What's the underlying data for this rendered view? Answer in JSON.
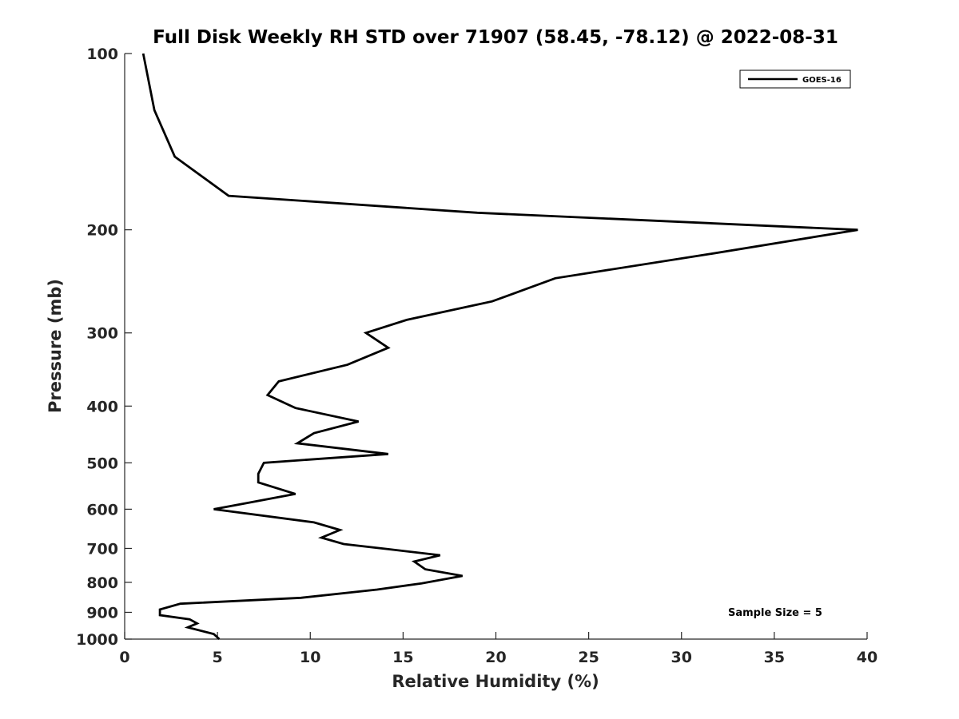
{
  "chart_data": {
    "type": "line",
    "title": "Full Disk Weekly RH STD over 71907 (58.45, -78.12) @ 2022-08-31",
    "xlabel": "Relative Humidity (%)",
    "ylabel": "Pressure (mb)",
    "xlim": [
      0,
      40
    ],
    "ylim": [
      100,
      1000
    ],
    "y_scale": "log",
    "y_reversed": true,
    "x_ticks": [
      0,
      5,
      10,
      15,
      20,
      25,
      30,
      35,
      40
    ],
    "y_ticks": [
      100,
      200,
      300,
      400,
      500,
      600,
      700,
      800,
      900,
      1000
    ],
    "grid": false,
    "legend_position": "top-right",
    "series": [
      {
        "name": "GOES-16",
        "color": "#000000",
        "points": [
          [
            1.0,
            100
          ],
          [
            1.6,
            125
          ],
          [
            2.7,
            150
          ],
          [
            5.6,
            175
          ],
          [
            19.0,
            187
          ],
          [
            39.5,
            200
          ],
          [
            31.5,
            220
          ],
          [
            23.2,
            242
          ],
          [
            19.8,
            265
          ],
          [
            15.2,
            285
          ],
          [
            13.0,
            300
          ],
          [
            14.2,
            318
          ],
          [
            12.0,
            340
          ],
          [
            8.3,
            363
          ],
          [
            7.7,
            383
          ],
          [
            9.2,
            403
          ],
          [
            12.6,
            425
          ],
          [
            10.2,
            445
          ],
          [
            9.3,
            463
          ],
          [
            14.2,
            483
          ],
          [
            7.5,
            500
          ],
          [
            7.2,
            522
          ],
          [
            7.2,
            540
          ],
          [
            9.2,
            565
          ],
          [
            6.8,
            584
          ],
          [
            4.8,
            600
          ],
          [
            10.2,
            632
          ],
          [
            11.6,
            651
          ],
          [
            10.6,
            671
          ],
          [
            11.8,
            688
          ],
          [
            14.2,
            702
          ],
          [
            17.0,
            719
          ],
          [
            15.6,
            737
          ],
          [
            16.2,
            760
          ],
          [
            18.2,
            780
          ],
          [
            16.0,
            803
          ],
          [
            13.6,
            823
          ],
          [
            9.5,
            850
          ],
          [
            3.0,
            870
          ],
          [
            1.9,
            890
          ],
          [
            1.9,
            910
          ],
          [
            3.5,
            925
          ],
          [
            3.9,
            940
          ],
          [
            3.4,
            955
          ],
          [
            4.8,
            980
          ],
          [
            5.1,
            1000
          ]
        ]
      }
    ],
    "annotations": [
      {
        "text": "Sample Size = 5"
      }
    ]
  }
}
